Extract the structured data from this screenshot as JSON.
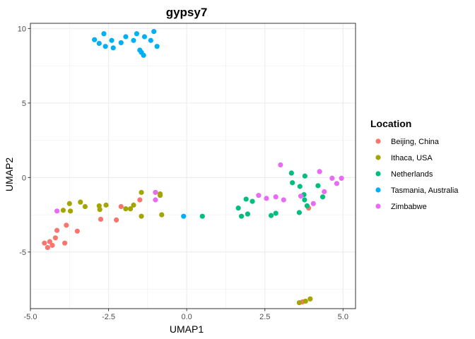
{
  "chart_data": {
    "type": "scatter",
    "title": "gypsy7",
    "xlabel": "UMAP1",
    "ylabel": "UMAP2",
    "xlim": [
      -5.0,
      5.4
    ],
    "ylim": [
      -8.8,
      10.35
    ],
    "xticks": [
      -5.0,
      -2.5,
      0.0,
      2.5,
      5.0
    ],
    "xtick_labels": [
      "-5.0",
      "-2.5",
      "0.0",
      "2.5",
      "5.0"
    ],
    "yticks": [
      -5,
      0,
      5,
      10
    ],
    "ytick_labels": [
      "-5",
      "0",
      "5",
      "10"
    ],
    "grid": true,
    "legend_title": "Location",
    "legend_position": "right",
    "series": [
      {
        "name": "Beijing, China",
        "color": "#F8766D",
        "points": [
          [
            -4.55,
            -4.4
          ],
          [
            -4.45,
            -4.7
          ],
          [
            -4.38,
            -4.3
          ],
          [
            -4.3,
            -4.55
          ],
          [
            -4.2,
            -4.05
          ],
          [
            -4.15,
            -3.55
          ],
          [
            -3.9,
            -4.4
          ],
          [
            -3.85,
            -3.2
          ],
          [
            -3.5,
            -3.6
          ],
          [
            -2.75,
            -2.8
          ],
          [
            -2.25,
            -2.85
          ],
          [
            -2.1,
            -1.95
          ],
          [
            -1.5,
            -1.5
          ],
          [
            3.9,
            -2.05
          ],
          [
            3.7,
            -8.35
          ]
        ]
      },
      {
        "name": "Ithaca, USA",
        "color": "#A3A500",
        "points": [
          [
            -3.95,
            -2.2
          ],
          [
            -3.75,
            -1.75
          ],
          [
            -3.72,
            -2.25
          ],
          [
            -3.4,
            -1.65
          ],
          [
            -3.25,
            -1.95
          ],
          [
            -2.8,
            -1.9
          ],
          [
            -2.78,
            -2.15
          ],
          [
            -2.58,
            -1.85
          ],
          [
            -1.95,
            -2.1
          ],
          [
            -1.8,
            -2.1
          ],
          [
            -1.7,
            -1.85
          ],
          [
            -1.45,
            -1.0
          ],
          [
            -1.45,
            -2.6
          ],
          [
            -0.85,
            -1.1
          ],
          [
            -0.85,
            -1.2
          ],
          [
            -0.8,
            -2.5
          ],
          [
            3.6,
            -8.4
          ],
          [
            3.8,
            -8.3
          ],
          [
            3.95,
            -8.15
          ]
        ]
      },
      {
        "name": "Netherlands",
        "color": "#00BF7D",
        "points": [
          [
            0.5,
            -2.6
          ],
          [
            1.65,
            -2.05
          ],
          [
            1.75,
            -2.6
          ],
          [
            1.9,
            -1.45
          ],
          [
            1.95,
            -2.45
          ],
          [
            2.1,
            -1.6
          ],
          [
            2.7,
            -2.55
          ],
          [
            2.85,
            -2.4
          ],
          [
            3.35,
            0.3
          ],
          [
            3.38,
            -0.35
          ],
          [
            3.6,
            -2.35
          ],
          [
            3.62,
            -0.6
          ],
          [
            3.75,
            -1.15
          ],
          [
            3.77,
            -1.5
          ],
          [
            3.78,
            0.1
          ],
          [
            3.85,
            -1.9
          ],
          [
            4.2,
            -0.55
          ],
          [
            4.35,
            -1.3
          ]
        ]
      },
      {
        "name": "Tasmania, Australia",
        "color": "#00B0F6",
        "points": [
          [
            -2.95,
            9.25
          ],
          [
            -2.8,
            9.0
          ],
          [
            -2.65,
            9.65
          ],
          [
            -2.6,
            8.8
          ],
          [
            -2.4,
            9.2
          ],
          [
            -2.35,
            8.7
          ],
          [
            -2.1,
            9.05
          ],
          [
            -1.95,
            9.45
          ],
          [
            -1.7,
            9.2
          ],
          [
            -1.6,
            9.65
          ],
          [
            -1.5,
            8.55
          ],
          [
            -1.45,
            8.4
          ],
          [
            -1.38,
            8.2
          ],
          [
            -1.35,
            9.45
          ],
          [
            -1.15,
            9.2
          ],
          [
            -1.05,
            9.8
          ],
          [
            -0.95,
            8.8
          ],
          [
            -0.1,
            -2.6
          ]
        ]
      },
      {
        "name": "Zimbabwe",
        "color": "#E76BF3",
        "points": [
          [
            -4.15,
            -2.25
          ],
          [
            -1.0,
            -1.0
          ],
          [
            -1.0,
            -1.5
          ],
          [
            2.3,
            -1.2
          ],
          [
            2.55,
            -1.4
          ],
          [
            2.85,
            -1.3
          ],
          [
            3.0,
            0.85
          ],
          [
            3.1,
            -1.5
          ],
          [
            3.65,
            -1.25
          ],
          [
            4.05,
            -1.75
          ],
          [
            4.25,
            0.4
          ],
          [
            4.4,
            -0.95
          ],
          [
            4.65,
            -0.05
          ],
          [
            4.8,
            -0.4
          ],
          [
            4.95,
            -0.05
          ]
        ]
      }
    ]
  }
}
